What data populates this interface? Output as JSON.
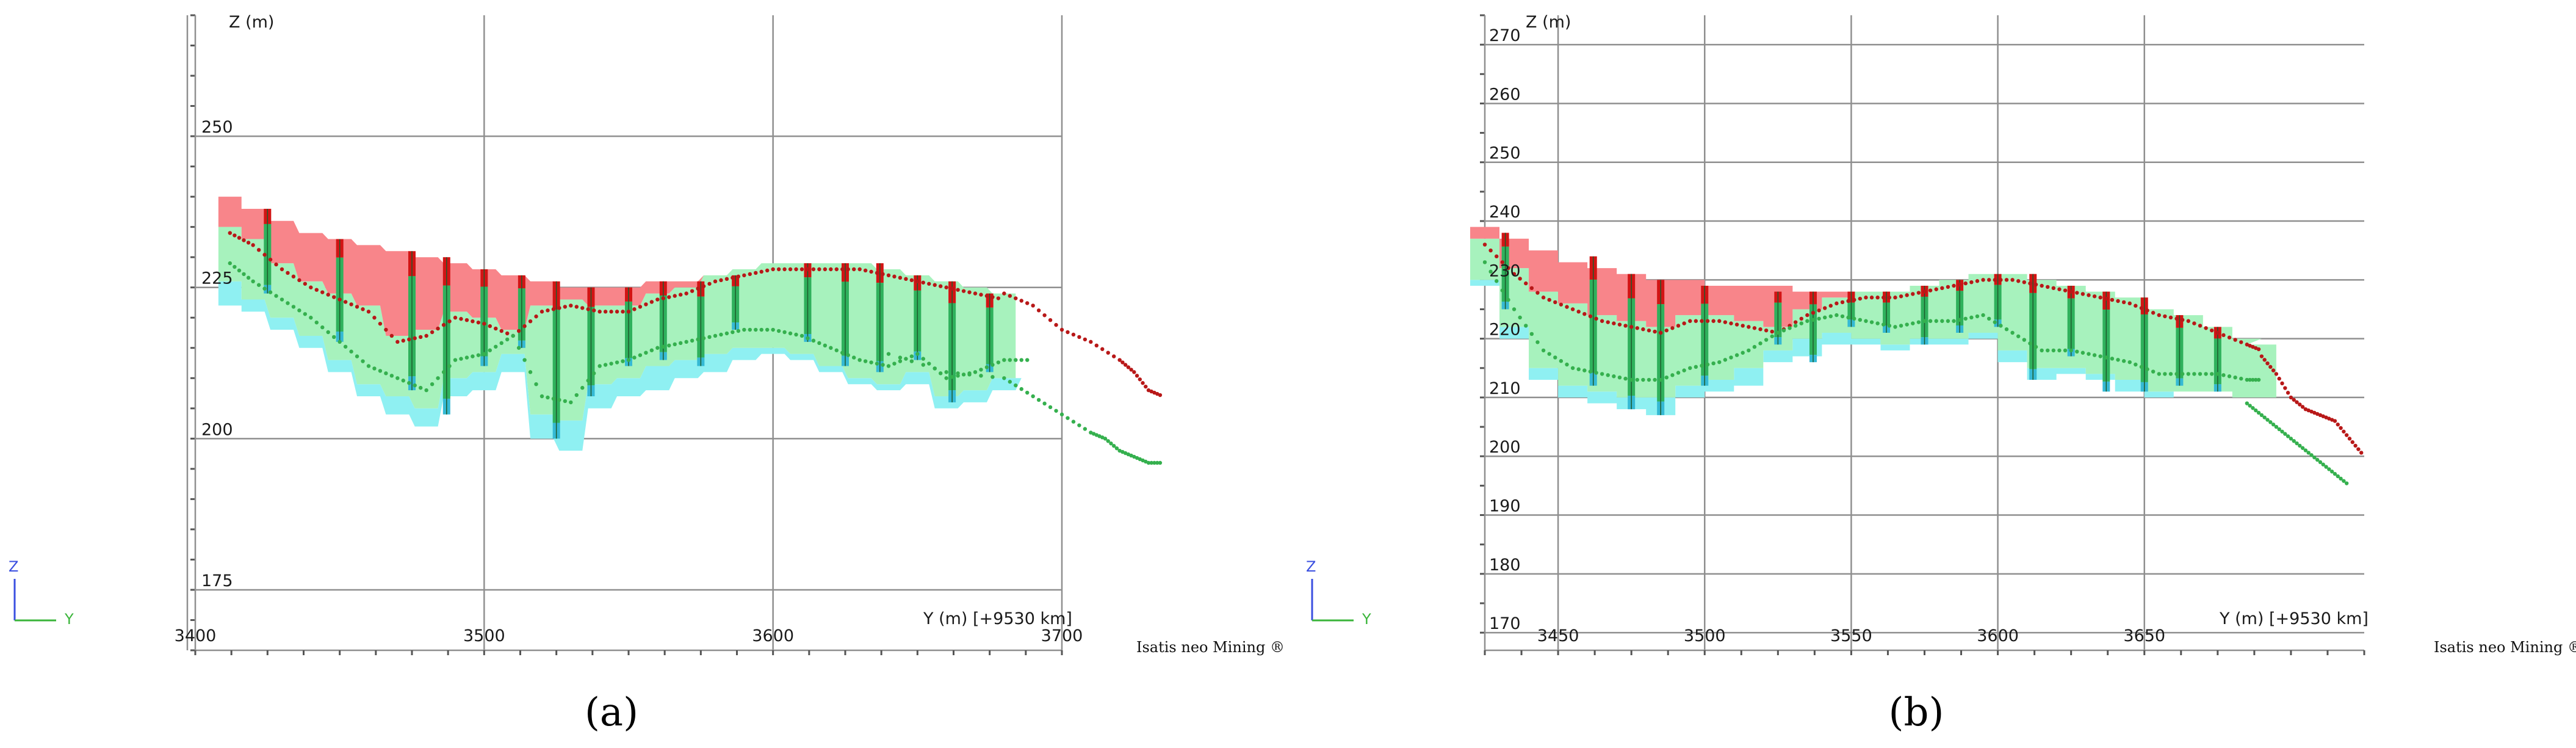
{
  "colors": {
    "ore": "#f8858a",
    "waste": "#a7f2bd",
    "deep": "#8ff0f2",
    "drill_red": "#d21414",
    "drill_green": "#2fb15c",
    "drill_cyan": "#35b9d4",
    "topo_red": "#b81818",
    "topo_green": "#35b04e",
    "grid": "#8f8f8f",
    "axis_z": "#3a4fe0",
    "axis_y": "#3ab53a"
  },
  "software_brand": "Isatis neo Mining ®",
  "chart_data": [
    {
      "id": "a",
      "type": "area",
      "caption": "(a)",
      "xlabel": "Y (m) [+9530 km]",
      "ylabel": "Z (m)",
      "xlim": [
        3400,
        3700
      ],
      "ylim": [
        165,
        270
      ],
      "x_ticks": [
        3400,
        3500,
        3600,
        3700
      ],
      "y_ticks": [
        175,
        200,
        225,
        250
      ],
      "grid": true,
      "orientation_axes": [
        "Z",
        "Y"
      ],
      "series": [
        {
          "name": "",
          "role": "ore_top",
          "x": [
            3412,
            3420,
            3430,
            3440,
            3450,
            3460,
            3470,
            3480,
            3490,
            3500,
            3510,
            3520,
            3530,
            3540,
            3550,
            3560,
            3570,
            3580,
            3590,
            3600,
            3610,
            3620,
            3630,
            3640,
            3650,
            3660,
            3670,
            3680
          ],
          "values": [
            240,
            238,
            236,
            234,
            233,
            232,
            231,
            230,
            229,
            228,
            227,
            226,
            225,
            225,
            225,
            226,
            226,
            227,
            228,
            229,
            229,
            229,
            229,
            228,
            227,
            226,
            225,
            224
          ]
        },
        {
          "name": "",
          "role": "waste_top",
          "x": [
            3412,
            3420,
            3430,
            3440,
            3450,
            3460,
            3470,
            3480,
            3490,
            3500,
            3510,
            3520,
            3530,
            3540,
            3550,
            3560,
            3570,
            3580,
            3590,
            3600,
            3610,
            3620,
            3630,
            3640,
            3650,
            3660,
            3670,
            3680
          ],
          "values": [
            235,
            233,
            229,
            226,
            224,
            222,
            217,
            218,
            221,
            220,
            218,
            222,
            223,
            222,
            222,
            224,
            225,
            227,
            228,
            229,
            229,
            229,
            229,
            228,
            227,
            226,
            225,
            224
          ]
        },
        {
          "name": "",
          "role": "waste_bottom",
          "x": [
            3412,
            3420,
            3430,
            3440,
            3450,
            3460,
            3470,
            3480,
            3490,
            3500,
            3510,
            3520,
            3530,
            3540,
            3550,
            3560,
            3570,
            3580,
            3590,
            3600,
            3610,
            3620,
            3630,
            3640,
            3650,
            3660,
            3670,
            3680,
            3690
          ],
          "values": [
            226,
            223,
            220,
            217,
            213,
            209,
            207,
            205,
            210,
            211,
            214,
            204,
            203,
            209,
            210,
            212,
            213,
            214,
            215,
            215,
            214,
            212,
            210,
            209,
            211,
            207,
            208,
            210,
            210
          ]
        },
        {
          "name": "",
          "role": "deep_bottom",
          "x": [
            3412,
            3420,
            3430,
            3440,
            3450,
            3460,
            3470,
            3480,
            3490,
            3500,
            3510,
            3520,
            3530,
            3540,
            3550,
            3560,
            3570,
            3580,
            3590,
            3600,
            3610,
            3620,
            3630,
            3640,
            3650,
            3660,
            3670,
            3680,
            3690
          ],
          "values": [
            222,
            221,
            218,
            215,
            211,
            207,
            204,
            202,
            207,
            208,
            211,
            200,
            198,
            205,
            207,
            208,
            210,
            211,
            213,
            214,
            213,
            211,
            209,
            208,
            209,
            205,
            206,
            208,
            210
          ]
        },
        {
          "name": "",
          "role": "topo_red",
          "x": [
            3680,
            3690,
            3700,
            3710,
            3720,
            3725,
            3730,
            3735
          ],
          "values": [
            224,
            222,
            218,
            216,
            213,
            211,
            208,
            207
          ]
        },
        {
          "name": "",
          "role": "topo_green",
          "x": [
            3640,
            3660,
            3680,
            3690,
            3700,
            3710,
            3715,
            3720,
            3725,
            3730,
            3735
          ],
          "values": [
            214,
            211,
            210,
            207,
            204,
            201,
            200,
            198,
            197,
            196,
            196
          ]
        }
      ],
      "drillholes": [
        {
          "x": 3425,
          "top": 238,
          "bottom": 224
        },
        {
          "x": 3450,
          "top": 233,
          "bottom": 216
        },
        {
          "x": 3475,
          "top": 231,
          "bottom": 208
        },
        {
          "x": 3487,
          "top": 230,
          "bottom": 204
        },
        {
          "x": 3500,
          "top": 228,
          "bottom": 212
        },
        {
          "x": 3513,
          "top": 227,
          "bottom": 215
        },
        {
          "x": 3525,
          "top": 226,
          "bottom": 200
        },
        {
          "x": 3537,
          "top": 225,
          "bottom": 207
        },
        {
          "x": 3550,
          "top": 225,
          "bottom": 212
        },
        {
          "x": 3562,
          "top": 226,
          "bottom": 213
        },
        {
          "x": 3575,
          "top": 226,
          "bottom": 212
        },
        {
          "x": 3587,
          "top": 227,
          "bottom": 218
        },
        {
          "x": 3612,
          "top": 229,
          "bottom": 216
        },
        {
          "x": 3625,
          "top": 229,
          "bottom": 212
        },
        {
          "x": 3637,
          "top": 229,
          "bottom": 211
        },
        {
          "x": 3650,
          "top": 227,
          "bottom": 213
        },
        {
          "x": 3662,
          "top": 226,
          "bottom": 206
        },
        {
          "x": 3675,
          "top": 224,
          "bottom": 211
        }
      ]
    },
    {
      "id": "b",
      "type": "area",
      "caption": "(b)",
      "xlabel": "Y (m) [+9530 km]",
      "ylabel": "Z (m)",
      "xlim": [
        3425,
        3725
      ],
      "ylim": [
        167,
        275
      ],
      "x_ticks": [
        3450,
        3500,
        3550,
        3600,
        3650
      ],
      "y_ticks": [
        170,
        180,
        190,
        200,
        210,
        220,
        230,
        240,
        250,
        260,
        270
      ],
      "grid": true,
      "orientation_axes": [
        "Z",
        "Y"
      ],
      "series": [
        {
          "name": "",
          "role": "ore_top",
          "x": [
            3425,
            3435,
            3445,
            3455,
            3465,
            3475,
            3485,
            3495,
            3505,
            3515,
            3525,
            3535,
            3545,
            3555,
            3565,
            3575,
            3585,
            3595,
            3605,
            3615,
            3625,
            3635,
            3645,
            3655,
            3665,
            3675,
            3685,
            3690
          ],
          "values": [
            239,
            237,
            235,
            233,
            232,
            231,
            230,
            230,
            229,
            229,
            229,
            228,
            228,
            228,
            228,
            229,
            230,
            231,
            231,
            230,
            229,
            228,
            227,
            225,
            224,
            222,
            220,
            219
          ]
        },
        {
          "name": "",
          "role": "waste_top",
          "x": [
            3425,
            3435,
            3445,
            3455,
            3465,
            3475,
            3485,
            3495,
            3505,
            3515,
            3525,
            3535,
            3545,
            3555,
            3565,
            3575,
            3585,
            3595,
            3605,
            3615,
            3625,
            3635,
            3645,
            3655,
            3665,
            3675,
            3685,
            3690
          ],
          "values": [
            237,
            232,
            228,
            226,
            224,
            223,
            222,
            224,
            224,
            223,
            222,
            225,
            227,
            228,
            228,
            229,
            230,
            231,
            231,
            230,
            229,
            228,
            227,
            225,
            224,
            222,
            220,
            219
          ]
        },
        {
          "name": "",
          "role": "waste_bottom",
          "x": [
            3425,
            3435,
            3445,
            3455,
            3465,
            3475,
            3485,
            3495,
            3505,
            3515,
            3525,
            3535,
            3545,
            3555,
            3565,
            3575,
            3585,
            3595,
            3605,
            3615,
            3625,
            3635,
            3645,
            3655,
            3665,
            3675,
            3685,
            3690
          ],
          "values": [
            230,
            222,
            215,
            212,
            211,
            210,
            210,
            212,
            213,
            215,
            218,
            220,
            221,
            220,
            219,
            220,
            220,
            221,
            218,
            215,
            215,
            214,
            213,
            211,
            211,
            211,
            210,
            210
          ]
        },
        {
          "name": "",
          "role": "deep_bottom",
          "x": [
            3425,
            3435,
            3445,
            3455,
            3465,
            3475,
            3485,
            3495,
            3505,
            3515,
            3525,
            3535,
            3545,
            3555,
            3565,
            3575,
            3585,
            3595,
            3605,
            3615,
            3625,
            3635,
            3645,
            3655,
            3665,
            3675,
            3685,
            3690
          ],
          "values": [
            229,
            220,
            213,
            210,
            209,
            208,
            207,
            210,
            211,
            212,
            216,
            217,
            219,
            219,
            218,
            219,
            219,
            220,
            216,
            213,
            214,
            213,
            211,
            210,
            211,
            211,
            210,
            210
          ]
        },
        {
          "name": "",
          "role": "topo_red",
          "x": [
            3690,
            3695,
            3700,
            3705,
            3710,
            3715,
            3720,
            3725
          ],
          "values": [
            217,
            214,
            210,
            208,
            207,
            206,
            203,
            200
          ]
        },
        {
          "name": "",
          "role": "topo_green",
          "x": [
            3685,
            3690,
            3695,
            3700,
            3705,
            3710,
            3715,
            3720
          ],
          "values": [
            209,
            207,
            205,
            203,
            201,
            199,
            197,
            195
          ]
        }
      ],
      "drillholes": [
        {
          "x": 3432,
          "top": 238,
          "bottom": 225
        },
        {
          "x": 3462,
          "top": 234,
          "bottom": 212
        },
        {
          "x": 3475,
          "top": 231,
          "bottom": 208
        },
        {
          "x": 3485,
          "top": 230,
          "bottom": 207
        },
        {
          "x": 3500,
          "top": 229,
          "bottom": 212
        },
        {
          "x": 3525,
          "top": 228,
          "bottom": 219
        },
        {
          "x": 3537,
          "top": 228,
          "bottom": 216
        },
        {
          "x": 3550,
          "top": 228,
          "bottom": 222
        },
        {
          "x": 3562,
          "top": 228,
          "bottom": 221
        },
        {
          "x": 3575,
          "top": 229,
          "bottom": 219
        },
        {
          "x": 3587,
          "top": 230,
          "bottom": 221
        },
        {
          "x": 3600,
          "top": 231,
          "bottom": 222
        },
        {
          "x": 3612,
          "top": 231,
          "bottom": 213
        },
        {
          "x": 3625,
          "top": 229,
          "bottom": 217
        },
        {
          "x": 3637,
          "top": 228,
          "bottom": 211
        },
        {
          "x": 3650,
          "top": 227,
          "bottom": 211
        },
        {
          "x": 3662,
          "top": 224,
          "bottom": 212
        },
        {
          "x": 3675,
          "top": 222,
          "bottom": 211
        }
      ]
    }
  ]
}
